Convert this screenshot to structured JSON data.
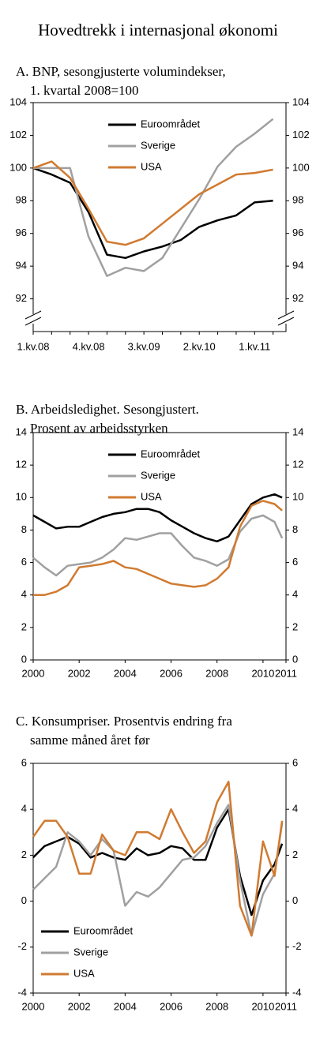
{
  "title": "Hovedtrekk i internasjonal økonomi",
  "chart_data": [
    {
      "type": "line",
      "title": [
        "A. BNP, sesongjusterte volumindekser,",
        "1. kvartal  2008=100"
      ],
      "categories": [
        "1.kv.08",
        null,
        null,
        "4.kv.08",
        null,
        null,
        "3.kv.09",
        null,
        null,
        "2.kv.10",
        null,
        null,
        "1.kv.11",
        null
      ],
      "series": [
        {
          "name": "Euroområdet",
          "color": "#000000",
          "values": [
            100,
            99.6,
            99.1,
            97.3,
            94.7,
            94.5,
            94.9,
            95.2,
            95.6,
            96.4,
            96.8,
            97.1,
            97.9,
            98.0
          ]
        },
        {
          "name": "Sverige",
          "color": "#a0a0a0",
          "values": [
            100,
            100,
            100,
            95.8,
            93.4,
            93.9,
            93.7,
            94.5,
            96.3,
            98.1,
            100.1,
            101.3,
            102.1,
            103.0
          ]
        },
        {
          "name": "USA",
          "color": "#d07a30",
          "values": [
            100,
            100.4,
            99.4,
            97.5,
            95.5,
            95.3,
            95.7,
            96.6,
            97.5,
            98.4,
            99.0,
            99.6,
            99.7,
            99.9
          ]
        }
      ],
      "ylim": [
        90,
        104
      ],
      "yticks": [
        92,
        94,
        96,
        98,
        100,
        102,
        104
      ],
      "y2lim": [
        90,
        104
      ],
      "y2ticks": [
        92,
        94,
        96,
        98,
        100,
        102,
        104
      ],
      "legend": "upper center"
    },
    {
      "type": "line",
      "title": [
        "B.  Arbeidsledighet. Sesongjustert.",
        "Prosent av arbeidsstyrken"
      ],
      "x": [
        2000,
        2000.5,
        2001,
        2001.5,
        2002,
        2002.5,
        2003,
        2003.5,
        2004,
        2004.5,
        2005,
        2005.5,
        2006,
        2006.5,
        2007,
        2007.5,
        2008,
        2008.5,
        2009,
        2009.5,
        2010,
        2010.5,
        2010.83
      ],
      "series": [
        {
          "name": "Euroområdet",
          "color": "#000000",
          "values": [
            8.9,
            8.5,
            8.1,
            8.2,
            8.2,
            8.5,
            8.8,
            9.0,
            9.1,
            9.3,
            9.3,
            9.1,
            8.6,
            8.2,
            7.8,
            7.5,
            7.3,
            7.6,
            8.6,
            9.6,
            10.0,
            10.2,
            10.0
          ]
        },
        {
          "name": "Sverige",
          "color": "#a0a0a0",
          "values": [
            6.3,
            5.7,
            5.2,
            5.8,
            5.9,
            6.0,
            6.3,
            6.8,
            7.5,
            7.4,
            7.6,
            7.8,
            7.8,
            7.0,
            6.3,
            6.1,
            5.8,
            6.2,
            7.9,
            8.7,
            8.9,
            8.5,
            7.5
          ]
        },
        {
          "name": "USA",
          "color": "#d07a30",
          "values": [
            4.0,
            4.0,
            4.2,
            4.6,
            5.7,
            5.8,
            5.9,
            6.1,
            5.7,
            5.6,
            5.3,
            5.0,
            4.7,
            4.6,
            4.5,
            4.6,
            5.0,
            5.7,
            8.2,
            9.5,
            9.8,
            9.6,
            9.2
          ]
        }
      ],
      "xlim": [
        2000,
        2011
      ],
      "xticks": [
        2000,
        2002,
        2004,
        2006,
        2008,
        2010,
        2011
      ],
      "ylim": [
        0,
        14
      ],
      "yticks": [
        0,
        2,
        4,
        6,
        8,
        10,
        12,
        14
      ],
      "y2lim": [
        0,
        14
      ],
      "y2ticks": [
        0,
        2,
        4,
        6,
        8,
        10,
        12,
        14
      ],
      "legend": "upper center"
    },
    {
      "type": "line",
      "title": [
        "C.  Konsumpriser. Prosentvis endring fra",
        "samme måned året før"
      ],
      "x": [
        2000,
        2000.5,
        2001,
        2001.5,
        2002,
        2002.5,
        2003,
        2003.5,
        2004,
        2004.5,
        2005,
        2005.5,
        2006,
        2006.5,
        2007,
        2007.5,
        2008,
        2008.5,
        2009,
        2009.5,
        2010,
        2010.5,
        2010.83
      ],
      "series": [
        {
          "name": "Euroområdet",
          "color": "#000000",
          "values": [
            1.9,
            2.4,
            2.6,
            2.8,
            2.5,
            1.9,
            2.1,
            1.9,
            1.8,
            2.3,
            2.0,
            2.1,
            2.4,
            2.3,
            1.8,
            1.8,
            3.2,
            4.0,
            1.1,
            -0.6,
            0.9,
            1.6,
            2.5
          ]
        },
        {
          "name": "Sverige",
          "color": "#a0a0a0",
          "values": [
            0.5,
            1.0,
            1.5,
            3.0,
            2.6,
            2.0,
            2.7,
            2.2,
            -0.2,
            0.4,
            0.2,
            0.6,
            1.2,
            1.8,
            1.9,
            2.4,
            3.4,
            4.2,
            0.9,
            -1.5,
            0.3,
            1.2,
            3.4
          ]
        },
        {
          "name": "USA",
          "color": "#d07a30",
          "values": [
            2.8,
            3.5,
            3.5,
            2.8,
            1.2,
            1.2,
            2.9,
            2.2,
            2.0,
            3.0,
            3.0,
            2.7,
            4.0,
            3.0,
            2.1,
            2.6,
            4.3,
            5.2,
            -0.2,
            -1.5,
            2.6,
            1.1,
            3.5
          ]
        }
      ],
      "xlim": [
        2000,
        2011
      ],
      "xticks": [
        2000,
        2002,
        2004,
        2006,
        2008,
        2010,
        2011
      ],
      "ylim": [
        -4,
        6
      ],
      "yticks": [
        -4,
        -2,
        0,
        2,
        4,
        6
      ],
      "y2lim": [
        -4,
        6
      ],
      "y2ticks": [
        -4,
        -2,
        0,
        2,
        4,
        6
      ],
      "legend": "lower left"
    }
  ]
}
